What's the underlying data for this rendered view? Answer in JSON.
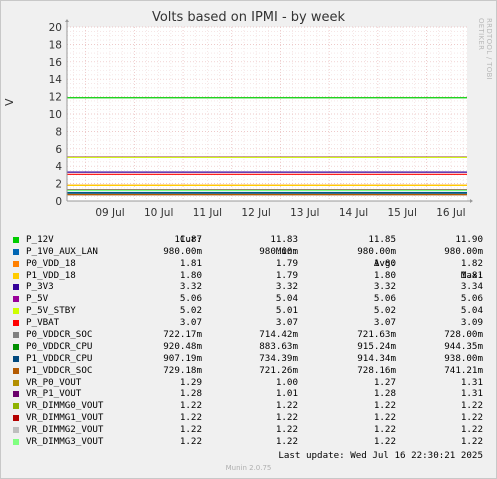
{
  "chart_data": {
    "type": "line",
    "title": "Volts based on IPMI - by week",
    "ylabel": "V",
    "ylim": [
      0,
      20
    ],
    "yticks": [
      "0",
      "2",
      "4",
      "6",
      "8",
      "10",
      "12",
      "14",
      "16",
      "18",
      "20"
    ],
    "xticks": [
      "09 Jul",
      "10 Jul",
      "11 Jul",
      "12 Jul",
      "13 Jul",
      "14 Jul",
      "15 Jul",
      "16 Jul"
    ],
    "grid": true,
    "columns": [
      "Cur:",
      "Min:",
      "Avg:",
      "Max:"
    ],
    "series": [
      {
        "name": "P_12V",
        "color": "#00cc00",
        "cur": "11.87",
        "min": "11.83",
        "avg": "11.85",
        "max": "11.90",
        "value": 11.87
      },
      {
        "name": "P_1V0_AUX_LAN",
        "color": "#0066b3",
        "cur": "980.00m",
        "min": "980.00m",
        "avg": "980.00m",
        "max": "980.00m",
        "value": 0.98
      },
      {
        "name": "P0_VDD_18",
        "color": "#ff8000",
        "cur": "1.81",
        "min": "1.79",
        "avg": "1.80",
        "max": "1.82",
        "value": 1.81
      },
      {
        "name": "P1_VDD_18",
        "color": "#ffcc00",
        "cur": "1.80",
        "min": "1.79",
        "avg": "1.80",
        "max": "1.81",
        "value": 1.8
      },
      {
        "name": "P_3V3",
        "color": "#330099",
        "cur": "3.32",
        "min": "3.32",
        "avg": "3.32",
        "max": "3.34",
        "value": 3.32
      },
      {
        "name": "P_5V",
        "color": "#990099",
        "cur": "5.06",
        "min": "5.04",
        "avg": "5.06",
        "max": "5.06",
        "value": 5.06
      },
      {
        "name": "P_5V_STBY",
        "color": "#ccff00",
        "cur": "5.02",
        "min": "5.01",
        "avg": "5.02",
        "max": "5.04",
        "value": 5.02
      },
      {
        "name": "P_VBAT",
        "color": "#ff0000",
        "cur": "3.07",
        "min": "3.07",
        "avg": "3.07",
        "max": "3.09",
        "value": 3.07
      },
      {
        "name": "P0_VDDCR_SOC",
        "color": "#808080",
        "cur": "722.17m",
        "min": "714.42m",
        "avg": "721.63m",
        "max": "728.00m",
        "value": 0.722
      },
      {
        "name": "P0_VDDCR_CPU",
        "color": "#008f00",
        "cur": "920.48m",
        "min": "883.63m",
        "avg": "915.24m",
        "max": "944.35m",
        "value": 0.92
      },
      {
        "name": "P1_VDDCR_CPU",
        "color": "#00487d",
        "cur": "907.19m",
        "min": "734.39m",
        "avg": "914.34m",
        "max": "938.00m",
        "value": 0.907
      },
      {
        "name": "P1_VDDCR_SOC",
        "color": "#b35a00",
        "cur": "729.18m",
        "min": "721.26m",
        "avg": "728.16m",
        "max": "741.21m",
        "value": 0.729
      },
      {
        "name": "VR_P0_VOUT",
        "color": "#b38f00",
        "cur": "1.29",
        "min": "1.00",
        "avg": "1.27",
        "max": "1.31",
        "value": 1.29
      },
      {
        "name": "VR_P1_VOUT",
        "color": "#6b006b",
        "cur": "1.28",
        "min": "1.01",
        "avg": "1.28",
        "max": "1.31",
        "value": 1.28
      },
      {
        "name": "VR_DIMMG0_VOUT",
        "color": "#8fb300",
        "cur": "1.22",
        "min": "1.22",
        "avg": "1.22",
        "max": "1.22",
        "value": 1.22
      },
      {
        "name": "VR_DIMMG1_VOUT",
        "color": "#b30000",
        "cur": "1.22",
        "min": "1.22",
        "avg": "1.22",
        "max": "1.22",
        "value": 1.22
      },
      {
        "name": "VR_DIMMG2_VOUT",
        "color": "#bebebe",
        "cur": "1.22",
        "min": "1.22",
        "avg": "1.22",
        "max": "1.22",
        "value": 1.22
      },
      {
        "name": "VR_DIMMG3_VOUT",
        "color": "#80ff80",
        "cur": "1.22",
        "min": "1.22",
        "avg": "1.22",
        "max": "1.22",
        "value": 1.22
      }
    ]
  },
  "side_label": "RRDTOOL / TOBI OETIKER",
  "last_update": "Last update: Wed Jul 16 22:30:21 2025",
  "footer": "Munin 2.0.75"
}
